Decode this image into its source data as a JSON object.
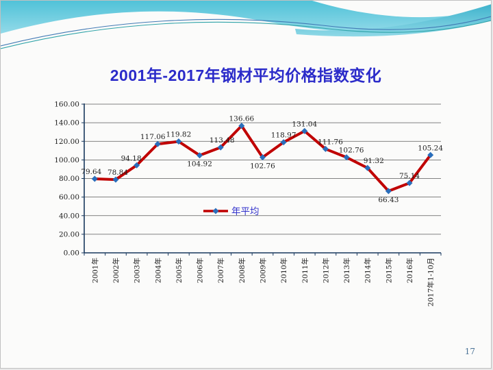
{
  "slide": {
    "title": "2001年-2017年钢材平均价格指数变化",
    "page_number": "17"
  },
  "chart_data": {
    "type": "line",
    "title": "",
    "categories": [
      "2001年",
      "2002年",
      "2003年",
      "2004年",
      "2005年",
      "2006年",
      "2007年",
      "2008年",
      "2009年",
      "2010年",
      "2011年",
      "2012年",
      "2013年",
      "2014年",
      "2015年",
      "2016年",
      "2017年1-10月"
    ],
    "series": [
      {
        "name": "年平均",
        "values": [
          79.64,
          78.84,
          94.18,
          117.06,
          119.82,
          104.92,
          113.48,
          136.66,
          102.76,
          118.97,
          131.04,
          111.76,
          102.76,
          91.32,
          66.43,
          75.14,
          105.24
        ]
      }
    ],
    "ylim": [
      0,
      160
    ],
    "ytick_step": 20,
    "ytick_labels": [
      "0.00",
      "20.00",
      "40.00",
      "60.00",
      "80.00",
      "100.00",
      "120.00",
      "140.00",
      "160.00"
    ],
    "grid": true,
    "legend_position": "inside-center",
    "colors": {
      "line": "#c00000",
      "marker": "#2a6ebb",
      "axis": "#17375d",
      "gridline": "#595959",
      "data_label": "#1f1f1f",
      "tick_label": "#1a1a1a",
      "legend_text": "#3333cc"
    }
  }
}
